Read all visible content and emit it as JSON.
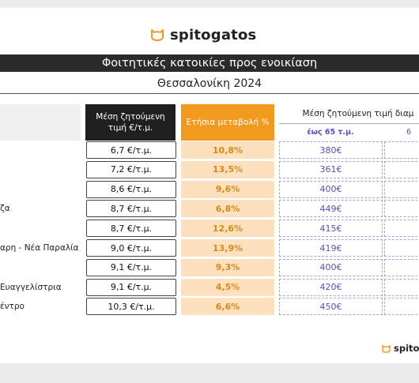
{
  "brand": {
    "name": "spitogatos",
    "footer_name": "spitoga",
    "accent_color": "#f29a1f"
  },
  "header": {
    "title": "Φοιτητικές κατοικίες προς ενοικίαση",
    "subtitle": "Θεσσαλονίκη 2024"
  },
  "table": {
    "col_price": "Μέση ζητούμενη\nτιμή €/τ.μ.",
    "col_change": "Ετήσια μεταβολή %",
    "col_avg_rent": "Μέση ζητούμενη τιμή διαμ",
    "col_sub_1": "έως 65 τ.μ.",
    "col_sub_2": "6",
    "rows": [
      {
        "area": "",
        "price": "6,7 €/τ.μ.",
        "change": "10,8%",
        "rent": "380€"
      },
      {
        "area": "",
        "price": "7,2 €/τ.μ.",
        "change": "13,5%",
        "rent": "361€"
      },
      {
        "area": "",
        "price": "8,6 €/τ.μ.",
        "change": "9,6%",
        "rent": "400€"
      },
      {
        "area": "ζα",
        "price": "8,7 €/τ.μ.",
        "change": "6,8%",
        "rent": "449€"
      },
      {
        "area": "",
        "price": "8,7 €/τ.μ.",
        "change": "12,6%",
        "rent": "415€"
      },
      {
        "area": "αρη - Νέα Παραλία",
        "price": "9,0 €/τ.μ.",
        "change": "13,9%",
        "rent": "419€"
      },
      {
        "area": "",
        "price": "9,1 €/τ.μ.",
        "change": "9,3%",
        "rent": "400€"
      },
      {
        "area": "Ευαγγελίστρια",
        "price": "9,1 €/τ.μ.",
        "change": "4,5%",
        "rent": "420€"
      },
      {
        "area": "έντρο",
        "price": "10,3 €/τ.μ.",
        "change": "6,6%",
        "rent": "450€"
      }
    ]
  }
}
